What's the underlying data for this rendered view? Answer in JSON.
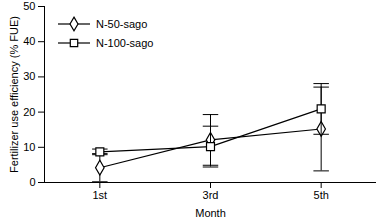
{
  "chart_data": {
    "type": "line",
    "x_label": "Month",
    "y_label": "Fertilizer use efficiency (% FUE)",
    "categories": [
      "1st",
      "3rd",
      "5th"
    ],
    "ylim": [
      0,
      50
    ],
    "yticks": [
      0,
      10,
      20,
      30,
      40,
      50
    ],
    "legend": "top-left",
    "series": [
      {
        "name": "N-50-sago",
        "color": "#000000",
        "marker": "diamond",
        "values": [
          4.2,
          12.1,
          15.2
        ],
        "errors": [
          4.0,
          7.2,
          11.9
        ]
      },
      {
        "name": "N-100-sago",
        "color": "#000000",
        "marker": "square",
        "values": [
          8.7,
          10.2,
          20.9
        ],
        "errors": [
          0.8,
          5.8,
          7.2
        ]
      }
    ]
  }
}
